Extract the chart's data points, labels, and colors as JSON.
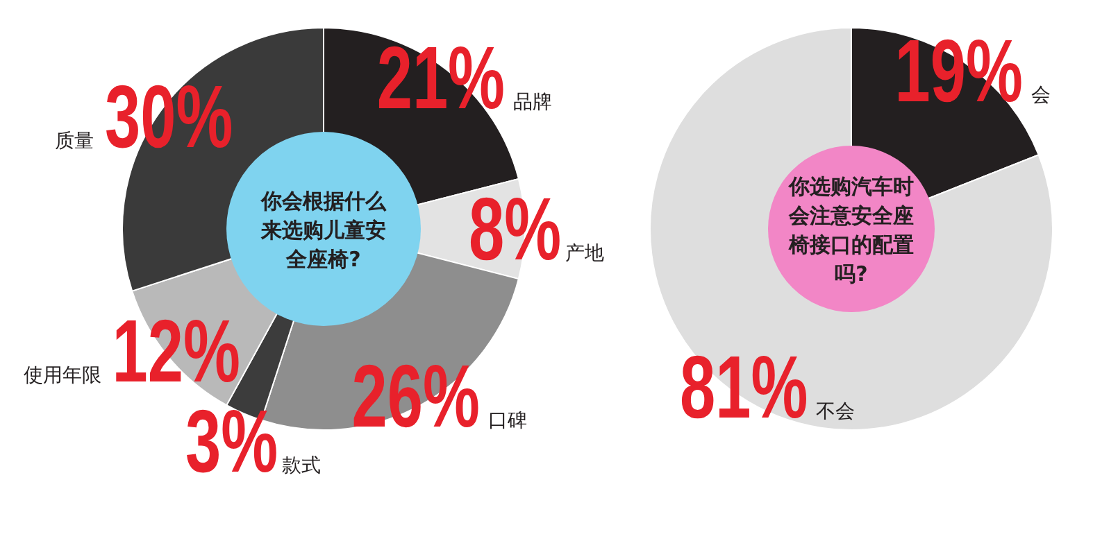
{
  "chart_data": [
    {
      "type": "donut",
      "title": "你会根据什么来选购儿童安全座椅?",
      "categories": [
        "品牌",
        "产地",
        "口碑",
        "款式",
        "使用年限",
        "质量"
      ],
      "values": [
        21,
        8,
        26,
        3,
        12,
        30
      ],
      "value_labels": [
        "21%",
        "8%",
        "26%",
        "3%",
        "12%",
        "30%"
      ],
      "colors": [
        "#231f20",
        "#e3e3e3",
        "#8e8e8e",
        "#3c3c3c",
        "#b9b9b9",
        "#3a3a3a"
      ]
    },
    {
      "type": "donut",
      "title": "你选购汽车时会注意安全座椅接口的配置吗?",
      "categories": [
        "会",
        "不会"
      ],
      "values": [
        19,
        81
      ],
      "value_labels": [
        "19%",
        "81%"
      ],
      "colors": [
        "#231f20",
        "#dedede"
      ]
    }
  ]
}
